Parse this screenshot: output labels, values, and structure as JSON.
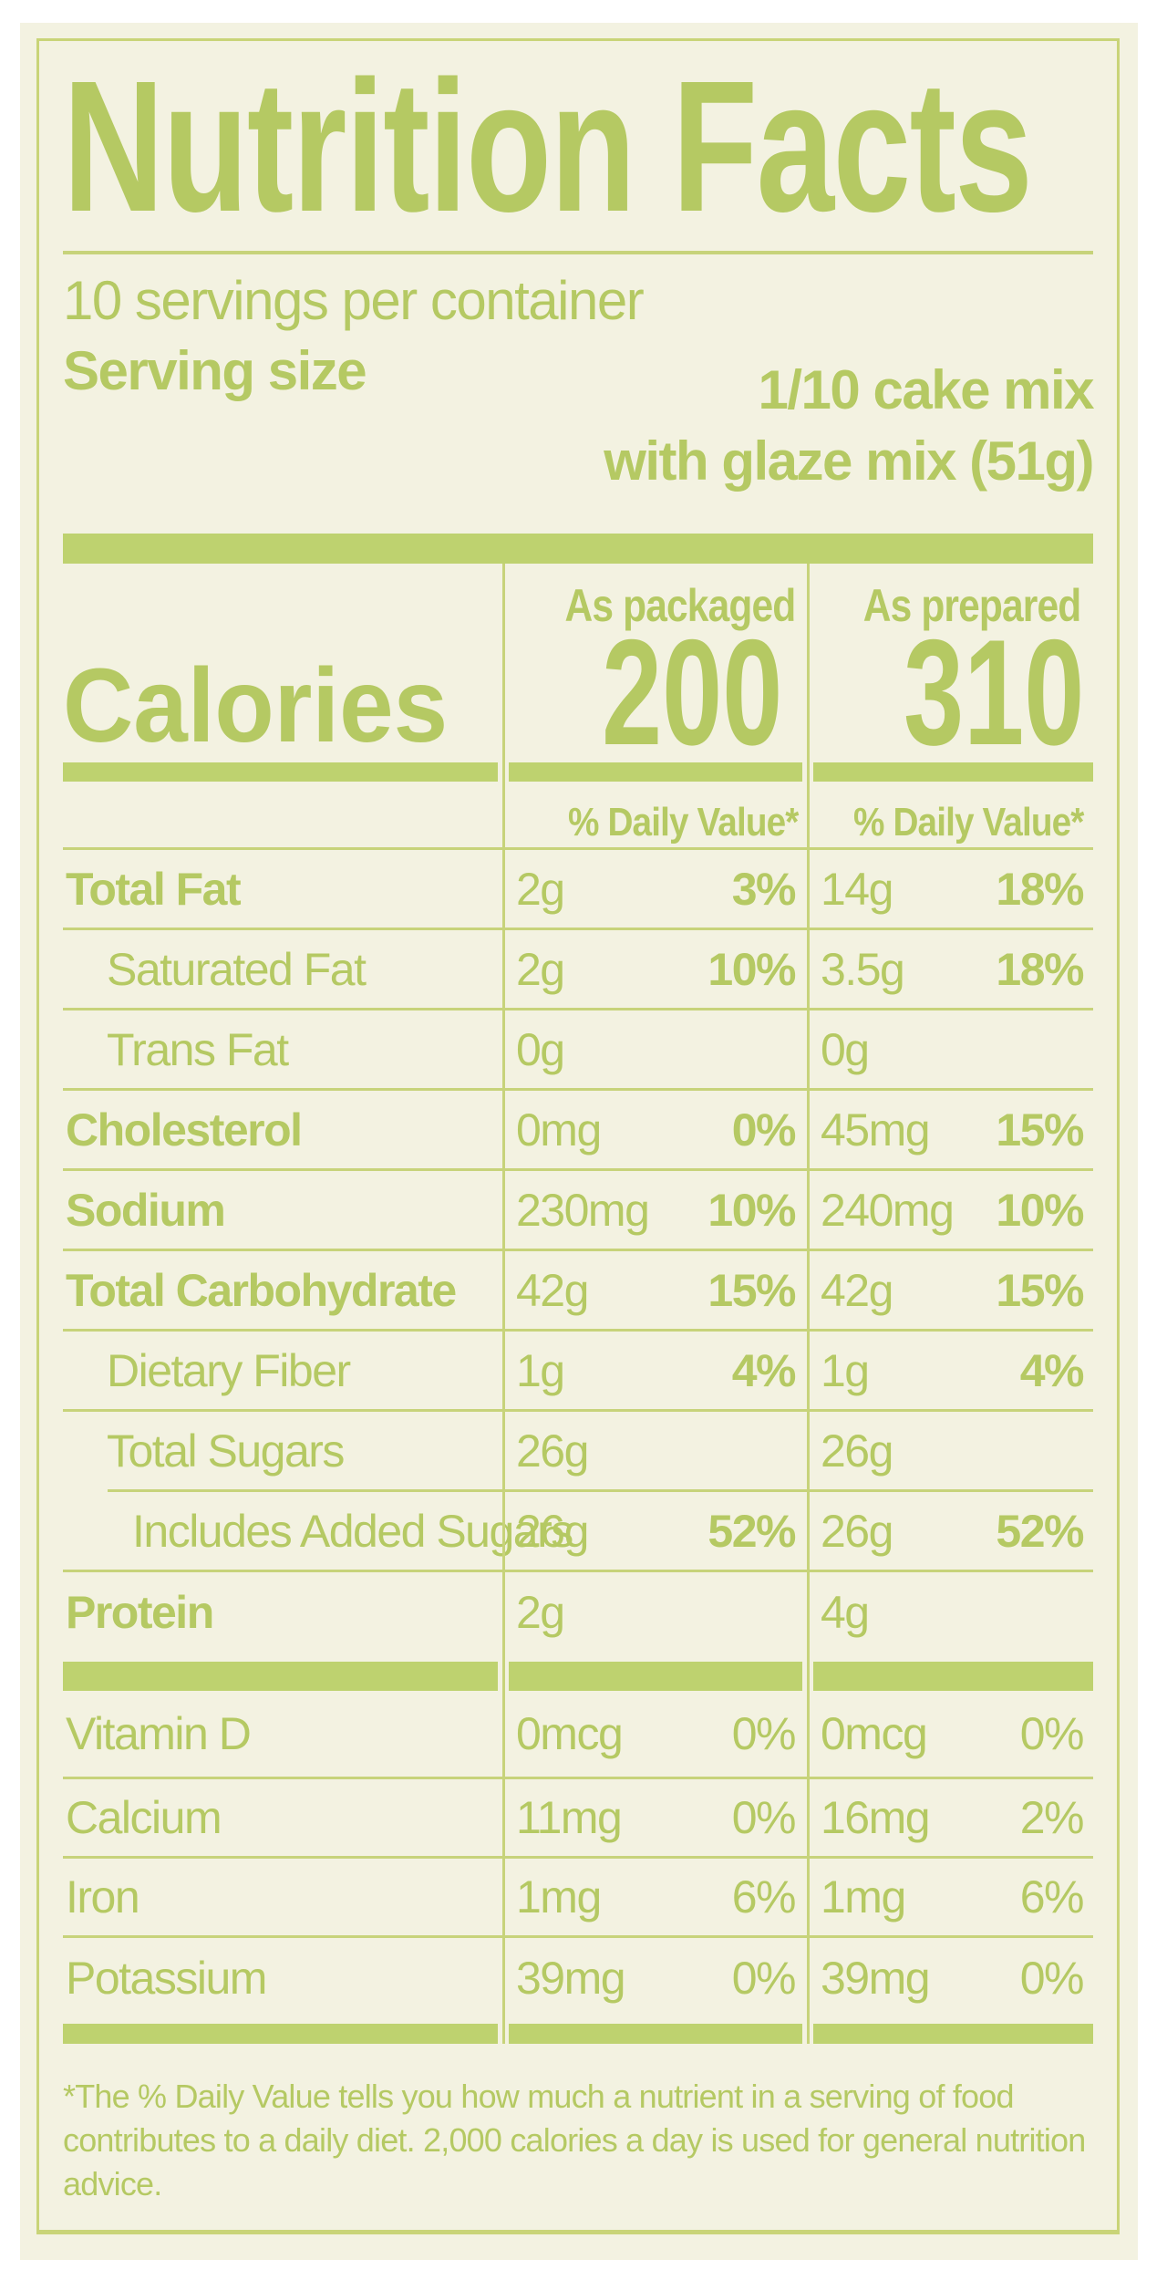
{
  "label": {
    "title": "Nutrition Facts",
    "servings_per_container": "10 servings per container",
    "serving_size": {
      "label": "Serving size",
      "value_line1": "1/10 cake mix",
      "value_line2": "with glaze mix (51g)"
    },
    "column_headers": {
      "packaged": "As packaged",
      "prepared": "As prepared"
    },
    "calories": {
      "label": "Calories",
      "packaged": "200",
      "prepared": "310"
    },
    "daily_value_header": {
      "packaged": "% Daily Value*",
      "prepared": "% Daily Value*"
    },
    "nutrients": [
      {
        "name": "Total Fat",
        "packaged_amount": "2g",
        "packaged_dv": "3%",
        "prepared_amount": "14g",
        "prepared_dv": "18%"
      },
      {
        "name": "Saturated Fat",
        "packaged_amount": "2g",
        "packaged_dv": "10%",
        "prepared_amount": "3.5g",
        "prepared_dv": "18%"
      },
      {
        "name": "Trans Fat",
        "packaged_amount": "0g",
        "packaged_dv": "",
        "prepared_amount": "0g",
        "prepared_dv": ""
      },
      {
        "name": "Cholesterol",
        "packaged_amount": "0mg",
        "packaged_dv": "0%",
        "prepared_amount": "45mg",
        "prepared_dv": "15%"
      },
      {
        "name": "Sodium",
        "packaged_amount": "230mg",
        "packaged_dv": "10%",
        "prepared_amount": "240mg",
        "prepared_dv": "10%"
      },
      {
        "name": "Total Carbohydrate",
        "packaged_amount": "42g",
        "packaged_dv": "15%",
        "prepared_amount": "42g",
        "prepared_dv": "15%"
      },
      {
        "name": "Dietary Fiber",
        "packaged_amount": "1g",
        "packaged_dv": "4%",
        "prepared_amount": "1g",
        "prepared_dv": "4%"
      },
      {
        "name": "Total Sugars",
        "packaged_amount": "26g",
        "packaged_dv": "",
        "prepared_amount": "26g",
        "prepared_dv": ""
      },
      {
        "name": "Includes Added Sugars",
        "packaged_amount": "26g",
        "packaged_dv": "52%",
        "prepared_amount": "26g",
        "prepared_dv": "52%"
      },
      {
        "name": "Protein",
        "packaged_amount": "2g",
        "packaged_dv": "",
        "prepared_amount": "4g",
        "prepared_dv": ""
      }
    ],
    "micronutrients": [
      {
        "name": "Vitamin D",
        "packaged_amount": "0mcg",
        "packaged_dv": "0%",
        "prepared_amount": "0mcg",
        "prepared_dv": "0%"
      },
      {
        "name": "Calcium",
        "packaged_amount": "11mg",
        "packaged_dv": "0%",
        "prepared_amount": "16mg",
        "prepared_dv": "2%"
      },
      {
        "name": "Iron",
        "packaged_amount": "1mg",
        "packaged_dv": "6%",
        "prepared_amount": "1mg",
        "prepared_dv": "6%"
      },
      {
        "name": "Potassium",
        "packaged_amount": "39mg",
        "packaged_dv": "0%",
        "prepared_amount": "39mg",
        "prepared_dv": "0%"
      }
    ],
    "footnote": "*The % Daily Value tells you how much a nutrient in a serving of food contributes to a daily diet. 2,000 calories a day is used for general nutrition advice.",
    "colors": {
      "text_green": "#b5c963",
      "bar_green": "#bed26f",
      "rule_green": "#c7d37a",
      "background_cream": "#f3f2e1",
      "page_white": "#ffffff"
    }
  }
}
